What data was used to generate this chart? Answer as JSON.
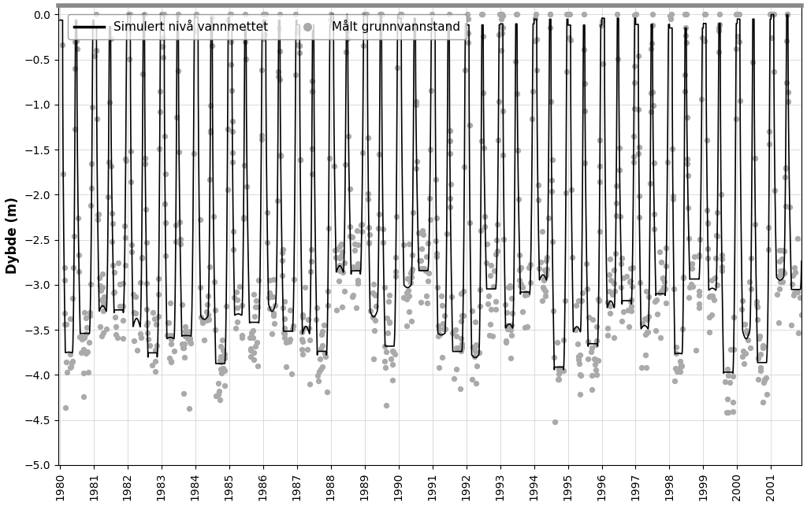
{
  "ylabel": "Dybde (m)",
  "ylim": [
    -5,
    0.1
  ],
  "yticks": [
    0,
    -0.5,
    -1.0,
    -1.5,
    -2.0,
    -2.5,
    -3.0,
    -3.5,
    -4.0,
    -4.5,
    -5.0
  ],
  "xlim_start": 1979.95,
  "xlim_end": 2001.9,
  "xtick_years": [
    1980,
    1981,
    1982,
    1983,
    1984,
    1985,
    1986,
    1987,
    1988,
    1989,
    1990,
    1991,
    1992,
    1993,
    1994,
    1995,
    1996,
    1997,
    1998,
    1999,
    2000,
    2001
  ],
  "legend_line_label": "Simulert nivå vannmettet",
  "legend_dot_label": "Målt grunnvannstand",
  "line_color": "#000000",
  "dot_color": "#aaaaaa",
  "dot_size": 28,
  "line_width": 1.2,
  "background_color": "#ffffff",
  "legend_box_color": "#ffffff",
  "grid_color": "#cccccc",
  "ylabel_fontsize": 12,
  "tick_fontsize": 10,
  "legend_fontsize": 11
}
